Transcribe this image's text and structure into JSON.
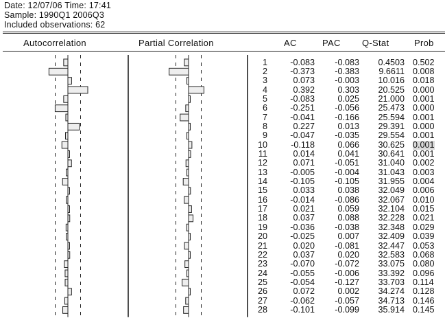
{
  "header": {
    "line1": "Date: 12/07/06   Time: 17:41",
    "line2": "Sample: 1990Q1 2006Q3",
    "line3": "Included observations: 62"
  },
  "columns": {
    "autocorrelation": "Autocorrelation",
    "partial_correlation": "Partial Correlation",
    "ac": "AC",
    "pac": "PAC",
    "qstat": "Q-Stat",
    "prob": "Prob"
  },
  "colors": {
    "text": "#111111",
    "rule": "#222222",
    "bar_fill": "#eeeeee",
    "highlight": "#d9d9d9"
  },
  "rows": [
    {
      "lag": "1",
      "ac": "-0.083",
      "pac": "-0.083",
      "q": "0.4503",
      "prob": "0.502"
    },
    {
      "lag": "2",
      "ac": "-0.373",
      "pac": "-0.383",
      "q": "9.6611",
      "prob": "0.008"
    },
    {
      "lag": "3",
      "ac": "0.073",
      "pac": "-0.003",
      "q": "10.016",
      "prob": "0.018"
    },
    {
      "lag": "4",
      "ac": "0.392",
      "pac": "0.303",
      "q": "20.525",
      "prob": "0.000"
    },
    {
      "lag": "5",
      "ac": "-0.083",
      "pac": "0.025",
      "q": "21.000",
      "prob": "0.001"
    },
    {
      "lag": "6",
      "ac": "-0.251",
      "pac": "-0.056",
      "q": "25.473",
      "prob": "0.000"
    },
    {
      "lag": "7",
      "ac": "-0.041",
      "pac": "-0.166",
      "q": "25.594",
      "prob": "0.001"
    },
    {
      "lag": "8",
      "ac": "0.227",
      "pac": "0.013",
      "q": "29.391",
      "prob": "0.000"
    },
    {
      "lag": "9",
      "ac": "-0.047",
      "pac": "-0.035",
      "q": "29.554",
      "prob": "0.001"
    },
    {
      "lag": "10",
      "ac": "-0.118",
      "pac": "0.066",
      "q": "30.625",
      "prob": "0.001"
    },
    {
      "lag": "11",
      "ac": "0.014",
      "pac": "0.041",
      "q": "30.641",
      "prob": "0.001"
    },
    {
      "lag": "12",
      "ac": "0.071",
      "pac": "-0.051",
      "q": "31.040",
      "prob": "0.002"
    },
    {
      "lag": "13",
      "ac": "-0.005",
      "pac": "-0.004",
      "q": "31.043",
      "prob": "0.003"
    },
    {
      "lag": "14",
      "ac": "-0.105",
      "pac": "-0.105",
      "q": "31.955",
      "prob": "0.004"
    },
    {
      "lag": "15",
      "ac": "0.033",
      "pac": "0.038",
      "q": "32.049",
      "prob": "0.006"
    },
    {
      "lag": "16",
      "ac": "-0.014",
      "pac": "-0.086",
      "q": "32.067",
      "prob": "0.010"
    },
    {
      "lag": "17",
      "ac": "0.021",
      "pac": "0.059",
      "q": "32.104",
      "prob": "0.015"
    },
    {
      "lag": "18",
      "ac": "0.037",
      "pac": "0.088",
      "q": "32.228",
      "prob": "0.021"
    },
    {
      "lag": "19",
      "ac": "-0.036",
      "pac": "-0.038",
      "q": "32.348",
      "prob": "0.029"
    },
    {
      "lag": "20",
      "ac": "-0.025",
      "pac": "0.007",
      "q": "32.409",
      "prob": "0.039"
    },
    {
      "lag": "21",
      "ac": "0.020",
      "pac": "-0.081",
      "q": "32.447",
      "prob": "0.053"
    },
    {
      "lag": "22",
      "ac": "0.037",
      "pac": "0.020",
      "q": "32.583",
      "prob": "0.068"
    },
    {
      "lag": "23",
      "ac": "-0.070",
      "pac": "-0.072",
      "q": "33.075",
      "prob": "0.080"
    },
    {
      "lag": "24",
      "ac": "-0.055",
      "pac": "-0.006",
      "q": "33.392",
      "prob": "0.096"
    },
    {
      "lag": "25",
      "ac": "-0.054",
      "pac": "-0.127",
      "q": "33.703",
      "prob": "0.114"
    },
    {
      "lag": "26",
      "ac": "0.072",
      "pac": "0.002",
      "q": "34.274",
      "prob": "0.128"
    },
    {
      "lag": "27",
      "ac": "-0.062",
      "pac": "-0.057",
      "q": "34.713",
      "prob": "0.146"
    },
    {
      "lag": "28",
      "ac": "-0.101",
      "pac": "-0.099",
      "q": "35.914",
      "prob": "0.145"
    }
  ],
  "highlighted_cell": {
    "row": "10",
    "column": "prob"
  }
}
